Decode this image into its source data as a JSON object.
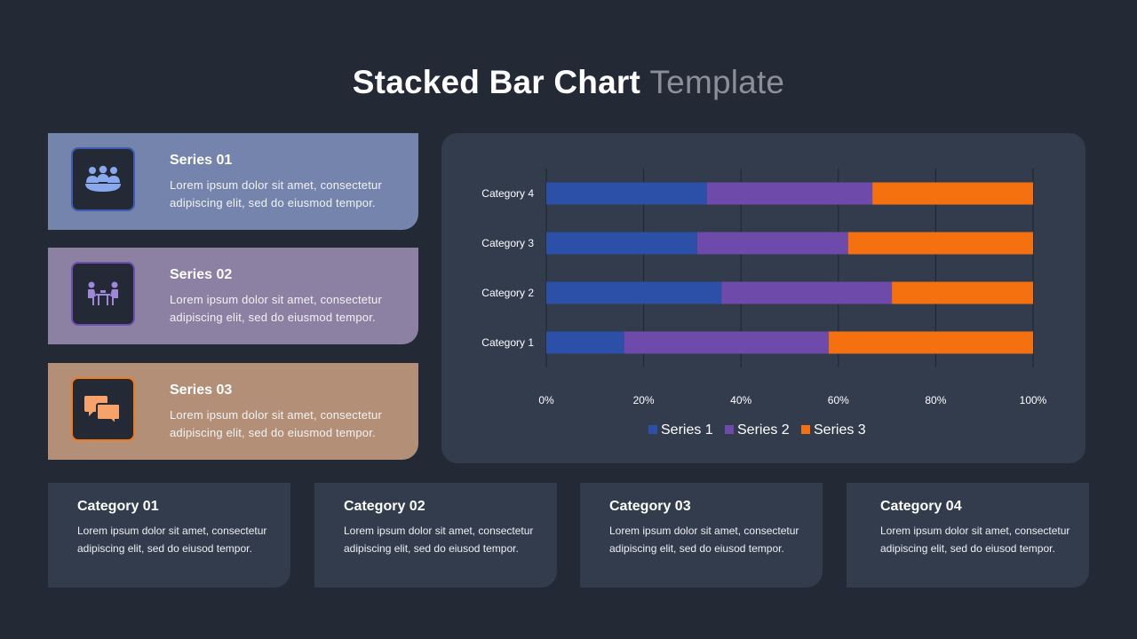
{
  "title": {
    "main": "Stacked Bar Chart",
    "light": "Template"
  },
  "series_cards": [
    {
      "heading": "Series 01",
      "body": "Lorem ipsum dolor sit amet, consectetur adipiscing elit, sed do eiusmod tempor.",
      "icon": "meeting-group-icon"
    },
    {
      "heading": "Series 02",
      "body": "Lorem ipsum dolor sit amet, consectetur adipiscing elit, sed do eiusmod tempor.",
      "icon": "people-at-table-icon"
    },
    {
      "heading": "Series 03",
      "body": "Lorem ipsum dolor sit amet, consectetur adipiscing elit, sed do eiusmod tempor.",
      "icon": "chat-bubbles-icon"
    }
  ],
  "category_cards": [
    {
      "heading": "Category 01",
      "body": "Lorem ipsum dolor sit amet, consectetur adipiscing elit, sed do eiusod tempor."
    },
    {
      "heading": "Category 02",
      "body": "Lorem ipsum dolor sit amet, consectetur adipiscing elit, sed do eiusod tempor."
    },
    {
      "heading": "Category 03",
      "body": "Lorem ipsum dolor sit amet, consectetur adipiscing elit, sed do eiusod tempor."
    },
    {
      "heading": "Category 04",
      "body": "Lorem ipsum dolor sit amet, consectetur adipiscing elit, sed do eiusod tempor."
    }
  ],
  "colors": {
    "series1": "#2c4fa8",
    "series2": "#6e4aaa",
    "series3": "#f5710f",
    "background": "#232a35",
    "panel": "#323c4d"
  },
  "chart_data": {
    "type": "bar",
    "orientation": "horizontal",
    "stacking": "percent",
    "categories": [
      "Category 1",
      "Category 2",
      "Category 3",
      "Category 4"
    ],
    "series": [
      {
        "name": "Series 1",
        "values": [
          16,
          36,
          31,
          33
        ]
      },
      {
        "name": "Series 2",
        "values": [
          42,
          35,
          31,
          34
        ]
      },
      {
        "name": "Series 3",
        "values": [
          42,
          29,
          38,
          33
        ]
      }
    ],
    "xlim": [
      0,
      100
    ],
    "xticks": [
      "0%",
      "20%",
      "40%",
      "60%",
      "80%",
      "100%"
    ],
    "grid": true,
    "legend": "bottom"
  }
}
